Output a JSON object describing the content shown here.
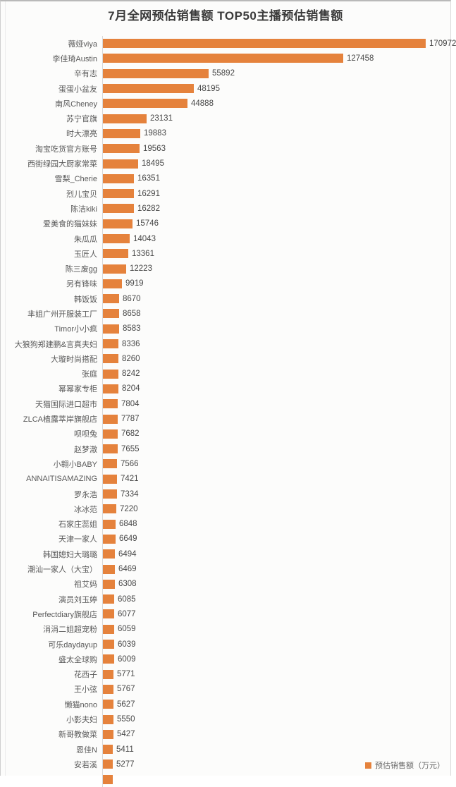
{
  "page": {
    "title": "7月全网预估销售额 TOP50主播预估销售额"
  },
  "legend": {
    "label": "预估销售额（万元）"
  },
  "colors": {
    "bar": "#E5823C",
    "axis": "#D9D9D9",
    "title_text": "#3A3A3A",
    "label_text": "#595959",
    "value_text": "#474747"
  },
  "chart_data": {
    "type": "bar",
    "orientation": "horizontal",
    "title": "7月全网预估销售额 TOP50主播预估销售额",
    "unit": "万元",
    "legend_entries": [
      "预估销售额（万元）"
    ],
    "legend_position": "bottom-right",
    "grid": false,
    "xlim": [
      0,
      170972
    ],
    "value_labels": true,
    "partial_50th_bar_visible": true,
    "categories": [
      "薇娅viya",
      "李佳琦Austin",
      "辛有志",
      "蛋蛋小盆友",
      "南风Cheney",
      "苏宁官旗",
      "时大漂亮",
      "淘宝吃货官方账号",
      "西街绿园大厨家常菜",
      "雪梨_Cherie",
      "烈儿宝贝",
      "陈洁kiki",
      "爱美食的猫妹妹",
      "朱瓜瓜",
      "玉匠人",
      "陈三废gg",
      "另有锋味",
      "韩饭饭",
      "芈姐广州开服装工厂",
      "Timor小小疯",
      "大狼狗郑建鹏&言真夫妇",
      "大璇时尚搭配",
      "张庭",
      "幂幂家专柜",
      "天猫国际进口超市",
      "ZLCA植露萃岸旗舰店",
      "呗呗兔",
      "赵梦澈",
      "小翱小BABY",
      "ANNAITISAMAZING",
      "罗永浩",
      "冰冰范",
      "石家庄蕊姐",
      "天津一家人",
      "韩国媳妇大璐璐",
      "潮汕一家人（大宝）",
      "祖艾妈",
      "演员刘玉婷",
      "Perfectdiary旗舰店",
      "涓涓二姐超宠粉",
      "可乐daydayup",
      "盛太全球购",
      "花西子",
      "王小弦",
      "懒猫nono",
      "小影夫妇",
      "新哥教做菜",
      "恩佳N",
      "安若溪"
    ],
    "values": [
      170972,
      127458,
      55892,
      48195,
      44888,
      23131,
      19883,
      19563,
      18495,
      16351,
      16291,
      16282,
      15746,
      14043,
      13361,
      12223,
      9919,
      8670,
      8658,
      8583,
      8336,
      8260,
      8242,
      8204,
      7804,
      7787,
      7682,
      7655,
      7566,
      7421,
      7334,
      7220,
      6848,
      6649,
      6494,
      6469,
      6308,
      6085,
      6077,
      6059,
      6039,
      6009,
      5771,
      5767,
      5627,
      5550,
      5427,
      5411,
      5277
    ]
  }
}
